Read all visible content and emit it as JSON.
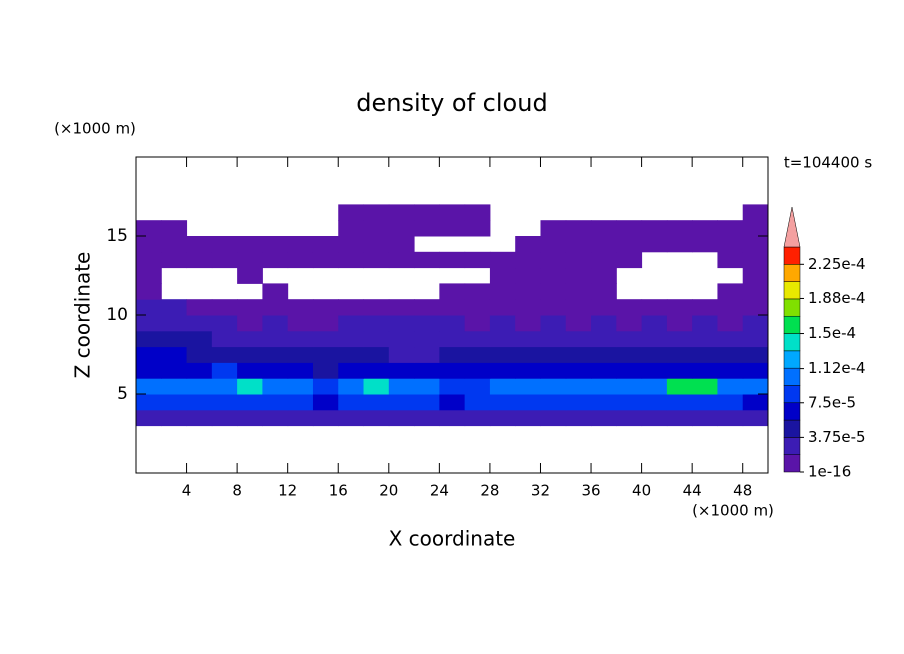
{
  "chart_data": {
    "type": "contour",
    "title": "density of cloud",
    "xlabel": "X coordinate",
    "ylabel": "Z coordinate",
    "x_unit": "(×1000 m)",
    "y_unit": "(×1000 m)",
    "annotation": "t=104400 s",
    "xlim": [
      0,
      50
    ],
    "ylim": [
      0,
      20
    ],
    "xticks": [
      4,
      8,
      12,
      16,
      20,
      24,
      28,
      32,
      36,
      40,
      44,
      48
    ],
    "yticks": [
      5,
      10,
      15
    ],
    "x": [
      1,
      3,
      5,
      7,
      9,
      11,
      13,
      15,
      17,
      19,
      21,
      23,
      25,
      27,
      29,
      31,
      33,
      35,
      37,
      39,
      41,
      43,
      45,
      47,
      49
    ],
    "z": [
      3.5,
      4.5,
      5.5,
      6.5,
      7.5,
      8.5,
      9.5,
      10.5,
      11.5,
      12.5,
      13.5,
      14.5,
      15.5,
      16.5
    ],
    "values": [
      [
        3e-05,
        3e-05,
        3e-05,
        3e-05,
        3e-05,
        3e-05,
        3e-05,
        3e-05,
        3e-05,
        3e-05,
        3e-05,
        3e-05,
        3e-05,
        3e-05,
        3e-05,
        3e-05,
        3e-05,
        3e-05,
        3e-05,
        3e-05,
        3e-05,
        3e-05,
        3e-05,
        3e-05,
        3e-05
      ],
      [
        8e-05,
        8e-05,
        8e-05,
        8e-05,
        8e-05,
        8e-05,
        8e-05,
        6e-05,
        8e-05,
        8e-05,
        8e-05,
        8e-05,
        6e-05,
        8e-05,
        8e-05,
        8e-05,
        8e-05,
        8e-05,
        8e-05,
        8e-05,
        8e-05,
        8e-05,
        8e-05,
        8e-05,
        6e-05
      ],
      [
        0.00011,
        0.00011,
        0.00011,
        0.00011,
        0.00014,
        0.00011,
        0.00011,
        8e-05,
        0.00011,
        0.00014,
        0.00011,
        0.00011,
        9e-05,
        9e-05,
        0.00011,
        0.00011,
        0.00011,
        0.00011,
        0.00011,
        0.00011,
        0.00011,
        0.00016,
        0.00016,
        0.00011,
        0.00011
      ],
      [
        6e-05,
        6e-05,
        6e-05,
        9e-05,
        6e-05,
        6e-05,
        6e-05,
        4e-05,
        6e-05,
        6e-05,
        6e-05,
        6e-05,
        6e-05,
        6e-05,
        6e-05,
        6e-05,
        6e-05,
        6e-05,
        6e-05,
        6e-05,
        6e-05,
        6e-05,
        6e-05,
        6e-05,
        6e-05
      ],
      [
        6e-05,
        6e-05,
        4e-05,
        4e-05,
        4e-05,
        4e-05,
        4e-05,
        4e-05,
        4e-05,
        4e-05,
        3e-05,
        3e-05,
        4e-05,
        4e-05,
        4e-05,
        4e-05,
        4e-05,
        4e-05,
        4e-05,
        4e-05,
        4e-05,
        4e-05,
        4e-05,
        4e-05,
        4e-05
      ],
      [
        5e-05,
        5e-05,
        5e-05,
        3e-05,
        3e-05,
        3e-05,
        3e-05,
        3e-05,
        3e-05,
        3e-05,
        3e-05,
        3e-05,
        3e-05,
        3e-05,
        3e-05,
        3e-05,
        3e-05,
        3e-05,
        3e-05,
        3e-05,
        3e-05,
        3e-05,
        3e-05,
        3e-05,
        3e-05
      ],
      [
        2e-05,
        2e-05,
        2e-05,
        2e-05,
        1e-05,
        2e-05,
        1e-05,
        1e-05,
        2e-05,
        2e-05,
        2e-05,
        2e-05,
        2e-05,
        1e-05,
        2e-05,
        1e-05,
        2e-05,
        1e-05,
        2e-05,
        1e-05,
        2e-05,
        1e-05,
        2e-05,
        1e-05,
        2e-05
      ],
      [
        2e-05,
        2e-05,
        1e-05,
        1e-05,
        1e-05,
        1e-05,
        1e-05,
        1e-05,
        1e-05,
        1e-05,
        1e-05,
        1e-05,
        1e-05,
        1e-05,
        1e-05,
        1e-05,
        1e-05,
        1e-05,
        1e-05,
        1e-05,
        1e-05,
        1e-05,
        1e-05,
        1e-05,
        1e-05
      ],
      [
        1e-05,
        null,
        null,
        null,
        null,
        1e-05,
        null,
        null,
        null,
        null,
        null,
        null,
        1e-05,
        1e-05,
        1e-05,
        1e-05,
        1e-05,
        1e-05,
        1e-05,
        null,
        null,
        null,
        null,
        1e-05,
        1e-05
      ],
      [
        1e-05,
        null,
        null,
        null,
        1e-05,
        null,
        null,
        null,
        null,
        null,
        null,
        null,
        null,
        null,
        1e-05,
        1e-05,
        1e-05,
        1e-05,
        1e-05,
        null,
        null,
        null,
        null,
        null,
        1e-05
      ],
      [
        1e-05,
        1e-05,
        1e-05,
        1e-05,
        1e-05,
        1e-05,
        1e-05,
        1e-05,
        1e-05,
        1e-05,
        1e-05,
        1e-05,
        1e-05,
        1e-05,
        1e-05,
        1e-05,
        1e-05,
        1e-05,
        1e-05,
        1e-05,
        null,
        null,
        null,
        1e-05,
        1e-05
      ],
      [
        1e-05,
        1e-05,
        1e-05,
        1e-05,
        1e-05,
        1e-05,
        1e-05,
        1e-05,
        1e-05,
        1e-05,
        1e-05,
        null,
        null,
        null,
        null,
        1e-05,
        1e-05,
        1e-05,
        1e-05,
        1e-05,
        1e-05,
        1e-05,
        1e-05,
        1e-05,
        1e-05
      ],
      [
        1e-05,
        1e-05,
        null,
        null,
        null,
        null,
        null,
        null,
        1e-05,
        1e-05,
        1e-05,
        1e-05,
        1e-05,
        1e-05,
        null,
        null,
        1e-05,
        1e-05,
        1e-05,
        1e-05,
        1e-05,
        1e-05,
        1e-05,
        1e-05,
        1e-05
      ],
      [
        null,
        null,
        null,
        null,
        null,
        null,
        null,
        null,
        1e-05,
        1e-05,
        1e-05,
        1e-05,
        1e-05,
        1e-05,
        null,
        null,
        null,
        null,
        null,
        null,
        null,
        null,
        null,
        null,
        1e-05
      ]
    ],
    "colorbar": {
      "levels": [
        1e-16,
        1.875e-05,
        3.75e-05,
        5.625e-05,
        7.5e-05,
        9.375e-05,
        0.0001125,
        0.00013125,
        0.00015,
        0.00016875,
        0.0001875,
        0.00020625,
        0.000225,
        0.00024375
      ],
      "colors": [
        "#5a14a8",
        "#3c1cb4",
        "#1a14a0",
        "#0000c8",
        "#0038f0",
        "#0070ff",
        "#00a8ff",
        "#00e0c8",
        "#00e050",
        "#80e000",
        "#e8e800",
        "#ffa800",
        "#ff2000"
      ],
      "extend_color": "#f4a0a0",
      "ticks": [
        {
          "value": 1e-16,
          "label": "1e-16"
        },
        {
          "value": 3.75e-05,
          "label": "3.75e-5"
        },
        {
          "value": 7.5e-05,
          "label": "7.5e-5"
        },
        {
          "value": 0.000112,
          "label": "1.12e-4"
        },
        {
          "value": 0.00015,
          "label": "1.5e-4"
        },
        {
          "value": 0.000188,
          "label": "1.88e-4"
        },
        {
          "value": 0.000225,
          "label": "2.25e-4"
        }
      ]
    }
  }
}
